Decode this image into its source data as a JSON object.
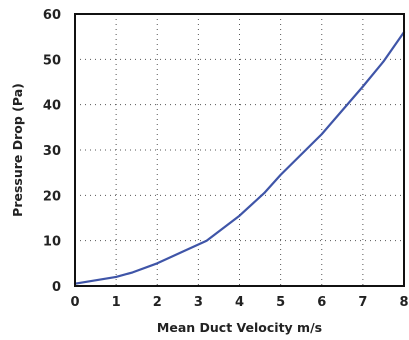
{
  "chart_data": {
    "type": "line",
    "title": "",
    "xlabel": "Mean Duct Velocity m/s",
    "ylabel": "Pressure Drop (Pa)",
    "xlim": [
      0,
      8
    ],
    "ylim": [
      0,
      60
    ],
    "xticks": [
      0,
      1,
      2,
      3,
      4,
      5,
      6,
      7,
      8
    ],
    "yticks": [
      0,
      10,
      20,
      30,
      40,
      50,
      60
    ],
    "grid": true,
    "series": [
      {
        "color": "#3f55a8",
        "x": [
          0,
          1,
          1.4,
          2,
          2.6,
          3.2,
          4,
          4.6,
          5,
          6,
          7,
          7.5,
          8
        ],
        "y": [
          0.5,
          2,
          3,
          5,
          7.5,
          10,
          15.5,
          20.5,
          24.5,
          33.5,
          44,
          49.5,
          56
        ]
      }
    ]
  }
}
